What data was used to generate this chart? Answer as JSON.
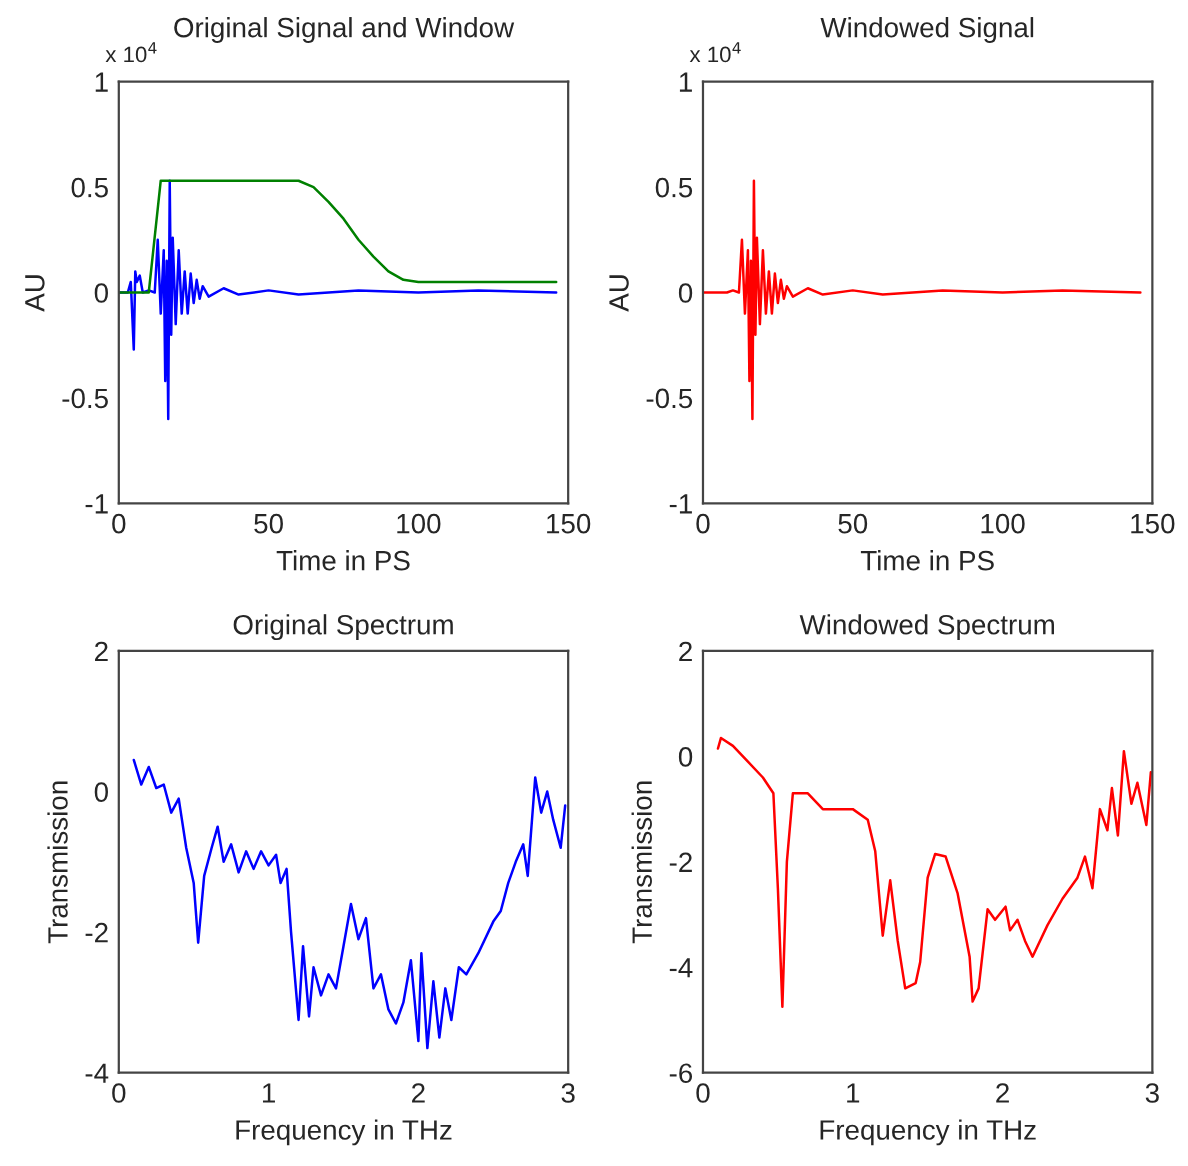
{
  "chart_data": [
    {
      "type": "line",
      "title": "Original Signal and Window",
      "xlabel": "Time in PS",
      "ylabel": "AU",
      "annotations": [
        "x 10$^{4}$"
      ],
      "xlim": [
        0,
        150
      ],
      "ylim": [
        -1,
        1
      ],
      "xticks": [
        0,
        50,
        100,
        150
      ],
      "yticks": [
        -1,
        -0.5,
        0,
        0.5,
        1
      ],
      "grid": false,
      "series": [
        {
          "color": "#0000ff",
          "x": [
            0,
            3,
            4,
            5,
            5.5,
            6,
            7,
            8,
            10,
            12,
            13,
            14,
            15,
            15.5,
            16,
            16.5,
            17,
            17.5,
            18,
            19,
            20,
            21,
            22,
            23,
            24,
            25,
            26,
            27,
            28,
            30,
            35,
            40,
            50,
            60,
            80,
            100,
            120,
            146
          ],
          "values": [
            0,
            0,
            0.05,
            -0.27,
            0.1,
            0.05,
            0.08,
            0,
            0.01,
            0,
            0.25,
            -0.1,
            0.2,
            -0.42,
            0.15,
            -0.6,
            0.53,
            -0.2,
            0.26,
            -0.15,
            0.2,
            -0.1,
            0.1,
            -0.1,
            0.09,
            -0.05,
            0.06,
            -0.03,
            0.03,
            -0.02,
            0.02,
            -0.01,
            0.01,
            -0.01,
            0.01,
            0,
            0.01,
            0
          ]
        },
        {
          "color": "#008000",
          "x": [
            0,
            10,
            14,
            60,
            65,
            70,
            75,
            80,
            85,
            90,
            95,
            100,
            146
          ],
          "values": [
            0,
            0,
            0.53,
            0.53,
            0.5,
            0.43,
            0.35,
            0.25,
            0.17,
            0.1,
            0.06,
            0.05,
            0.05
          ]
        }
      ]
    },
    {
      "type": "line",
      "title": "Windowed Signal",
      "xlabel": "Time in PS",
      "ylabel": "AU",
      "annotations": [
        "x 10$^{4}$"
      ],
      "xlim": [
        0,
        150
      ],
      "ylim": [
        -1,
        1
      ],
      "xticks": [
        0,
        50,
        100,
        150
      ],
      "yticks": [
        -1,
        -0.5,
        0,
        0.5,
        1
      ],
      "grid": false,
      "series": [
        {
          "color": "#ff0000",
          "x": [
            0,
            8,
            10,
            12,
            13,
            14,
            15,
            15.5,
            16,
            16.5,
            17,
            17.5,
            18,
            19,
            20,
            21,
            22,
            23,
            24,
            25,
            26,
            27,
            28,
            30,
            35,
            40,
            50,
            60,
            80,
            100,
            120,
            146
          ],
          "values": [
            0,
            0,
            0.01,
            0,
            0.25,
            -0.1,
            0.2,
            -0.42,
            0.15,
            -0.6,
            0.53,
            -0.2,
            0.26,
            -0.15,
            0.2,
            -0.1,
            0.1,
            -0.1,
            0.09,
            -0.05,
            0.06,
            -0.03,
            0.03,
            -0.02,
            0.02,
            -0.01,
            0.01,
            -0.01,
            0.01,
            0,
            0.01,
            0
          ]
        }
      ]
    },
    {
      "type": "line",
      "title": "Original Spectrum",
      "xlabel": "Frequency in THz",
      "ylabel": "Transmission",
      "xlim": [
        0,
        3
      ],
      "ylim": [
        -4,
        2
      ],
      "xticks": [
        0,
        1,
        2,
        3
      ],
      "yticks": [
        -4,
        -2,
        0,
        2
      ],
      "grid": false,
      "series": [
        {
          "color": "#0000ff",
          "x": [
            0.1,
            0.15,
            0.2,
            0.25,
            0.3,
            0.35,
            0.4,
            0.45,
            0.5,
            0.53,
            0.57,
            0.62,
            0.66,
            0.7,
            0.75,
            0.8,
            0.85,
            0.9,
            0.95,
            1.0,
            1.05,
            1.08,
            1.12,
            1.15,
            1.2,
            1.23,
            1.27,
            1.3,
            1.35,
            1.4,
            1.45,
            1.5,
            1.55,
            1.6,
            1.65,
            1.7,
            1.75,
            1.8,
            1.85,
            1.9,
            1.95,
            2.0,
            2.02,
            2.06,
            2.1,
            2.14,
            2.18,
            2.22,
            2.27,
            2.32,
            2.4,
            2.5,
            2.55,
            2.6,
            2.65,
            2.7,
            2.73,
            2.78,
            2.82,
            2.86,
            2.9,
            2.95,
            2.98
          ],
          "values": [
            0.45,
            0.1,
            0.35,
            0.05,
            0.1,
            -0.3,
            -0.1,
            -0.8,
            -1.3,
            -2.15,
            -1.2,
            -0.8,
            -0.5,
            -1.0,
            -0.75,
            -1.15,
            -0.85,
            -1.1,
            -0.85,
            -1.05,
            -0.9,
            -1.3,
            -1.1,
            -2.0,
            -3.25,
            -2.2,
            -3.2,
            -2.5,
            -2.9,
            -2.6,
            -2.8,
            -2.2,
            -1.6,
            -2.1,
            -1.8,
            -2.8,
            -2.6,
            -3.1,
            -3.3,
            -3.0,
            -2.4,
            -3.55,
            -2.3,
            -3.65,
            -2.7,
            -3.5,
            -2.8,
            -3.25,
            -2.5,
            -2.6,
            -2.3,
            -1.85,
            -1.7,
            -1.3,
            -1.0,
            -0.75,
            -1.2,
            0.2,
            -0.3,
            0,
            -0.4,
            -0.8,
            -0.2
          ]
        }
      ]
    },
    {
      "type": "line",
      "title": "Windowed Spectrum",
      "xlabel": "Frequency in THz",
      "ylabel": "Transmission",
      "xlim": [
        0,
        3
      ],
      "ylim": [
        -6,
        2
      ],
      "xticks": [
        0,
        1,
        2,
        3
      ],
      "yticks": [
        -6,
        -4,
        -2,
        0,
        2
      ],
      "grid": false,
      "series": [
        {
          "color": "#ff0000",
          "x": [
            0.1,
            0.12,
            0.2,
            0.3,
            0.4,
            0.47,
            0.5,
            0.53,
            0.56,
            0.6,
            0.7,
            0.8,
            0.9,
            1.0,
            1.1,
            1.15,
            1.2,
            1.25,
            1.3,
            1.35,
            1.42,
            1.45,
            1.5,
            1.55,
            1.62,
            1.7,
            1.78,
            1.8,
            1.84,
            1.9,
            1.95,
            2.02,
            2.05,
            2.1,
            2.15,
            2.2,
            2.3,
            2.4,
            2.5,
            2.55,
            2.6,
            2.65,
            2.7,
            2.73,
            2.77,
            2.81,
            2.86,
            2.9,
            2.96,
            2.99
          ],
          "values": [
            0.15,
            0.35,
            0.2,
            -0.1,
            -0.4,
            -0.7,
            -2.5,
            -4.75,
            -2.0,
            -0.7,
            -0.7,
            -1.0,
            -1.0,
            -1.0,
            -1.2,
            -1.8,
            -3.4,
            -2.35,
            -3.5,
            -4.4,
            -4.3,
            -3.9,
            -2.3,
            -1.85,
            -1.9,
            -2.6,
            -3.8,
            -4.65,
            -4.4,
            -2.9,
            -3.1,
            -2.85,
            -3.3,
            -3.1,
            -3.5,
            -3.8,
            -3.2,
            -2.7,
            -2.3,
            -1.9,
            -2.5,
            -1.0,
            -1.4,
            -0.6,
            -1.5,
            0.1,
            -0.9,
            -0.5,
            -1.3,
            -0.3
          ]
        }
      ]
    }
  ]
}
